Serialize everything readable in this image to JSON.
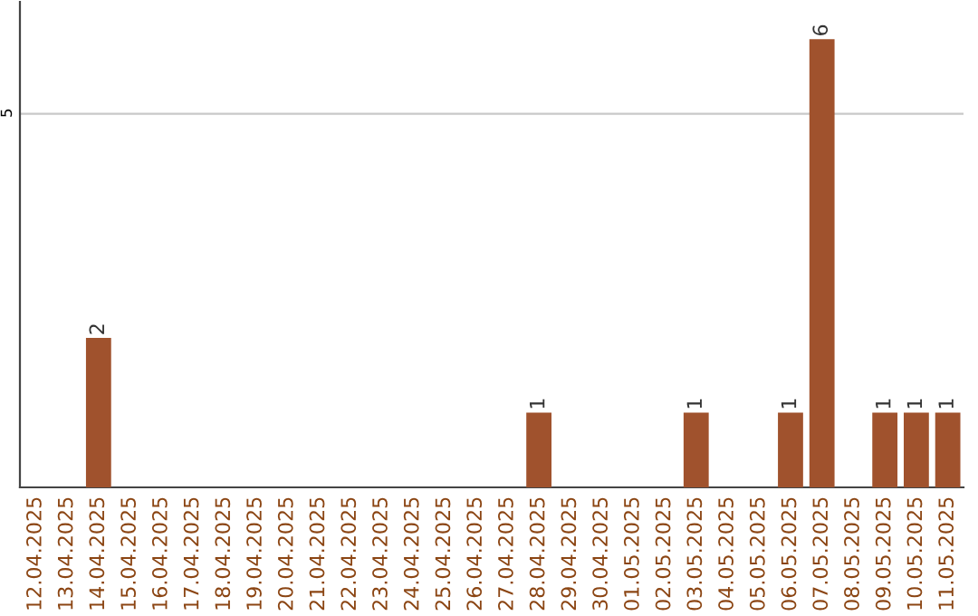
{
  "chart_data": {
    "type": "bar",
    "categories": [
      "12.04.2025",
      "13.04.2025",
      "14.04.2025",
      "15.04.2025",
      "16.04.2025",
      "17.04.2025",
      "18.04.2025",
      "19.04.2025",
      "20.04.2025",
      "21.04.2025",
      "22.04.2025",
      "23.04.2025",
      "24.04.2025",
      "25.04.2025",
      "26.04.2025",
      "27.04.2025",
      "28.04.2025",
      "29.04.2025",
      "30.04.2025",
      "01.05.2025",
      "02.05.2025",
      "03.05.2025",
      "04.05.2025",
      "05.05.2025",
      "06.05.2025",
      "07.05.2025",
      "08.05.2025",
      "09.05.2025",
      "10.05.2025",
      "11.05.2025"
    ],
    "values": [
      0,
      0,
      2,
      0,
      0,
      0,
      0,
      0,
      0,
      0,
      0,
      0,
      0,
      0,
      0,
      0,
      1,
      0,
      0,
      0,
      0,
      1,
      0,
      0,
      1,
      6,
      0,
      1,
      1,
      1
    ],
    "value_labels": [
      null,
      null,
      "2",
      null,
      null,
      null,
      null,
      null,
      null,
      null,
      null,
      null,
      null,
      null,
      null,
      null,
      "1",
      null,
      null,
      null,
      null,
      "1",
      null,
      null,
      "1",
      "6",
      null,
      "1",
      "1",
      "1"
    ],
    "color": "#a0522d",
    "ylim": [
      0,
      6.5
    ],
    "yticks": [
      5
    ],
    "grid": "y",
    "legend": false
  }
}
